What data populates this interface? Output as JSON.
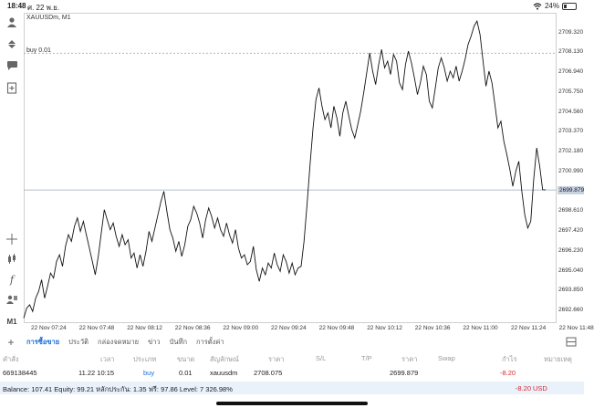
{
  "status": {
    "time": "18:48",
    "date": "ศ. 22 พ.ย.",
    "battery": "24%",
    "battery_level": 0.24
  },
  "toolbar_icons": [
    "person-icon",
    "trade-arrows-icon",
    "chat-icon",
    "new-doc-icon",
    "crosshair-icon",
    "candles-icon",
    "function-icon",
    "objects-icon",
    "timeframe-label"
  ],
  "toolbar": {
    "timeframe": "M1"
  },
  "chart": {
    "symbol": "XAUUSDm, M1",
    "order_line_label": "buy 0.01",
    "current_price": "2699.879",
    "y_ticks": [
      "2709.320",
      "2708.130",
      "2706.940",
      "2705.750",
      "2704.560",
      "2703.370",
      "2702.180",
      "2700.990",
      "2698.610",
      "2697.420",
      "2696.230",
      "2695.040",
      "2693.850",
      "2692.660"
    ],
    "x_ticks": [
      "22 Nov 07:24",
      "22 Nov 07:48",
      "22 Nov 08:12",
      "22 Nov 08:36",
      "22 Nov 09:00",
      "22 Nov 09:24",
      "22 Nov 09:48",
      "22 Nov 10:12",
      "22 Nov 10:36",
      "22 Nov 11:00",
      "22 Nov 11:24",
      "22 Nov 11:48"
    ]
  },
  "chart_data": {
    "type": "line",
    "ylim": [
      2691.9,
      2710.5
    ],
    "order_price": 2708.075,
    "current_price": 2699.879,
    "values": [
      2692.2,
      2692.8,
      2693.0,
      2692.6,
      2693.4,
      2693.8,
      2694.5,
      2693.4,
      2694.1,
      2694.9,
      2694.6,
      2695.6,
      2696.0,
      2695.3,
      2696.5,
      2697.2,
      2696.8,
      2697.7,
      2698.2,
      2697.4,
      2698.0,
      2697.2,
      2696.4,
      2695.6,
      2694.8,
      2695.9,
      2697.3,
      2698.7,
      2698.1,
      2697.5,
      2697.9,
      2697.1,
      2696.5,
      2697.2,
      2696.6,
      2696.9,
      2695.8,
      2696.1,
      2695.2,
      2696.0,
      2695.3,
      2696.2,
      2697.4,
      2696.8,
      2697.6,
      2698.4,
      2699.2,
      2699.8,
      2698.6,
      2697.5,
      2697.0,
      2696.2,
      2696.8,
      2695.9,
      2696.6,
      2697.7,
      2698.1,
      2698.9,
      2698.5,
      2697.9,
      2697.0,
      2698.1,
      2698.8,
      2698.3,
      2697.6,
      2698.2,
      2697.5,
      2697.1,
      2697.9,
      2697.2,
      2696.7,
      2697.5,
      2696.4,
      2695.8,
      2696.0,
      2695.4,
      2695.6,
      2696.5,
      2695.1,
      2694.4,
      2695.2,
      2694.8,
      2695.5,
      2695.2,
      2696.1,
      2695.4,
      2695.0,
      2696.0,
      2695.6,
      2694.9,
      2695.5,
      2694.8,
      2695.2,
      2695.3,
      2696.8,
      2699.0,
      2701.4,
      2703.6,
      2705.3,
      2706.0,
      2704.9,
      2704.1,
      2704.5,
      2703.6,
      2704.9,
      2704.2,
      2703.1,
      2704.5,
      2705.2,
      2704.3,
      2703.5,
      2703.0,
      2703.8,
      2704.6,
      2705.7,
      2706.9,
      2708.1,
      2707.0,
      2706.2,
      2707.4,
      2708.3,
      2707.2,
      2707.6,
      2706.8,
      2708.0,
      2707.6,
      2706.3,
      2705.9,
      2707.4,
      2708.2,
      2707.5,
      2706.6,
      2705.6,
      2706.3,
      2707.3,
      2706.8,
      2705.2,
      2704.8,
      2706.0,
      2707.2,
      2707.8,
      2707.2,
      2706.4,
      2707.0,
      2706.6,
      2707.3,
      2706.4,
      2707.0,
      2707.7,
      2708.6,
      2709.1,
      2709.7,
      2710.0,
      2709.2,
      2707.6,
      2706.1,
      2707.0,
      2706.3,
      2705.0,
      2703.6,
      2704.0,
      2702.8,
      2702.0,
      2701.1,
      2700.1,
      2701.0,
      2701.6,
      2699.8,
      2698.4,
      2697.6,
      2698.0,
      2700.5,
      2702.4,
      2701.3,
      2699.9,
      2699.879
    ]
  },
  "tabs": [
    "การซื้อขาย",
    "ประวัติ",
    "กล่องจดหมาย",
    "ข่าว",
    "บันทึก",
    "การตั้งค่า"
  ],
  "active_tab": 0,
  "table": {
    "headers": [
      "คำสั่ง",
      "เวลา",
      "ประเภท",
      "ขนาด",
      "สัญลักษณ์",
      "ราคา",
      "S/L",
      "T/P",
      "ราคา",
      "Swap",
      "กำไร",
      "หมายเหตุ"
    ],
    "row": {
      "order": "669138445",
      "time": "11.22 10:15",
      "type": "buy",
      "size": "0.01",
      "symbol": "xauusdm",
      "price_open": "2708.075",
      "price_current": "2699.879",
      "profit": "-8.20"
    }
  },
  "balance": {
    "text": "Balance: 107.41 Equity: 99.21 หลักประกัน: 1.35 ฟรี: 97.86 Level: 7 326.98%",
    "total": "-8.20",
    "currency": "USD"
  },
  "colors": {
    "accent": "#1a6fd6",
    "loss": "#d42a2a",
    "price_line": "#9aaab8",
    "balance_bg": "#e9f1fa"
  }
}
